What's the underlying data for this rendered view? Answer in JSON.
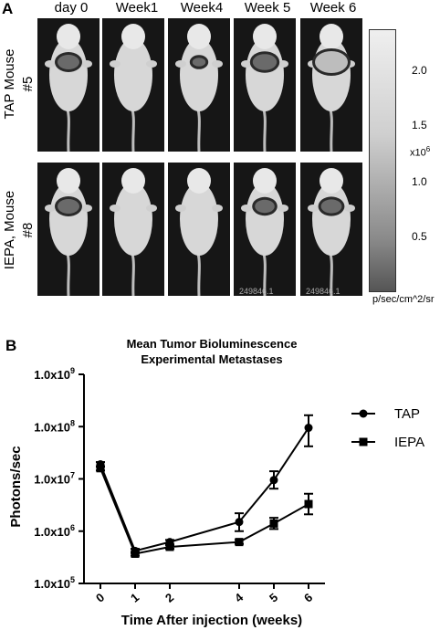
{
  "panel_a": {
    "letter": "A",
    "week_labels": [
      "day 0",
      "Week1",
      "Week4",
      "Week 5",
      "Week 6"
    ],
    "rows": [
      {
        "label_line1": "TAP Mouse",
        "label_line2": "#5"
      },
      {
        "label_line1": "IEPA, Mouse",
        "label_line2": "#8"
      }
    ],
    "signal_levels": {
      "tap": [
        0.5,
        0,
        0.1,
        0.6,
        1.0
      ],
      "iepa": [
        0.5,
        0,
        0,
        0.4,
        0.45
      ]
    },
    "image_stamps": [
      "249846.1",
      "249846.1"
    ],
    "colorbar": {
      "ticks": [
        "2.0",
        "1.5",
        "1.0",
        "0.5"
      ],
      "multiplier": "x10",
      "multiplier_exp": "6",
      "unit": "p/sec/cm^2/sr"
    }
  },
  "panel_b": {
    "letter": "B"
  },
  "chart_data": {
    "type": "line",
    "title": "Mean Tumor Bioluminescence",
    "subtitle": "Experimental Metastases",
    "xlabel": "Time After injection (weeks)",
    "ylabel": "Photons/sec",
    "x": [
      0,
      1,
      2,
      4,
      5,
      6
    ],
    "x_tick_labels": [
      "0",
      "1",
      "2",
      "4",
      "5",
      "6"
    ],
    "y_scale": "log",
    "ylim": [
      100000,
      1000000000
    ],
    "y_ticks": [
      {
        "value": 100000,
        "mant": "1.0x10",
        "exp": "5"
      },
      {
        "value": 1000000,
        "mant": "1.0x10",
        "exp": "6"
      },
      {
        "value": 10000000,
        "mant": "1.0x10",
        "exp": "7"
      },
      {
        "value": 100000000,
        "mant": "1.0x10",
        "exp": "8"
      },
      {
        "value": 1000000000,
        "mant": "1.0x10",
        "exp": "9"
      }
    ],
    "legend_position": "top-right",
    "series": [
      {
        "name": "TAP",
        "marker": "circle",
        "values": [
          19000000,
          420000,
          620000,
          1500000,
          9500000,
          95000000
        ],
        "err_low": [
          17000000,
          380000,
          560000,
          1000000,
          6500000,
          42000000
        ],
        "err_high": [
          21000000,
          460000,
          680000,
          2200000,
          14000000,
          165000000
        ]
      },
      {
        "name": "IEPA",
        "marker": "square",
        "values": [
          16000000,
          370000,
          500000,
          620000,
          1400000,
          3300000
        ],
        "err_low": [
          14500000,
          340000,
          460000,
          570000,
          1100000,
          2100000
        ],
        "err_high": [
          17500000,
          400000,
          540000,
          680000,
          1800000,
          5200000
        ]
      }
    ]
  }
}
